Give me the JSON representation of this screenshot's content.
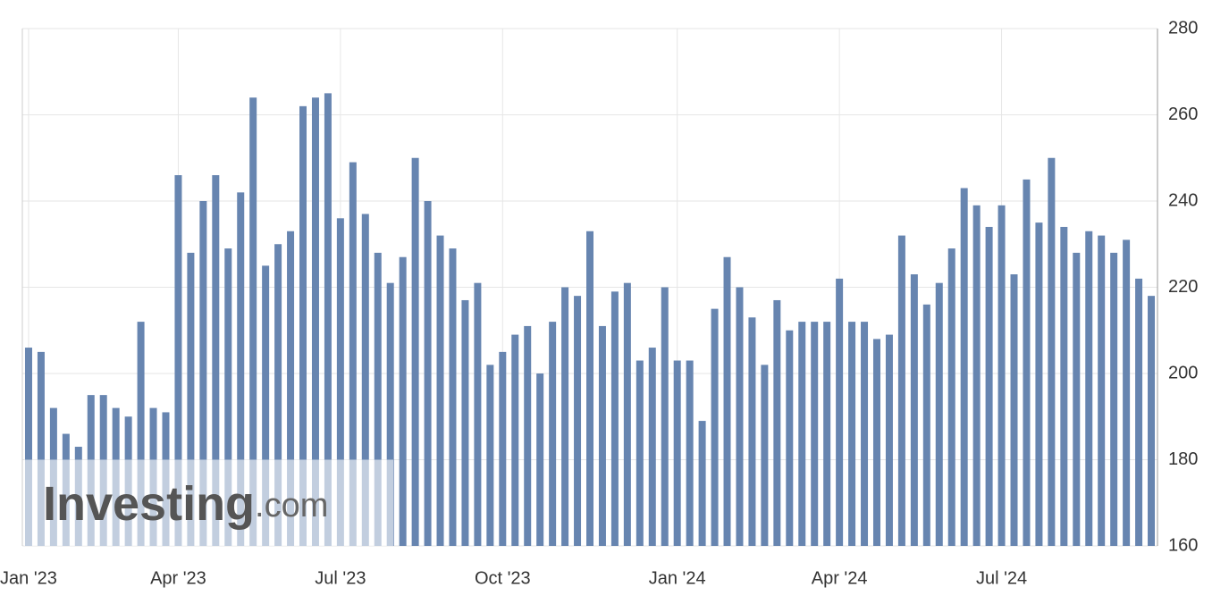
{
  "chart_data": {
    "type": "bar",
    "categories": [
      "Jan '23",
      null,
      null,
      null,
      null,
      null,
      null,
      null,
      null,
      null,
      null,
      null,
      "Apr '23",
      null,
      null,
      null,
      null,
      null,
      null,
      null,
      null,
      null,
      null,
      null,
      null,
      "Jul '23",
      null,
      null,
      null,
      null,
      null,
      null,
      null,
      null,
      null,
      null,
      null,
      null,
      "Oct '23",
      null,
      null,
      null,
      null,
      null,
      null,
      null,
      null,
      null,
      null,
      null,
      null,
      null,
      "Jan '24",
      null,
      null,
      null,
      null,
      null,
      null,
      null,
      null,
      null,
      null,
      null,
      null,
      "Apr '24",
      null,
      null,
      null,
      null,
      null,
      null,
      null,
      null,
      null,
      null,
      null,
      null,
      "Jul '24",
      null,
      null,
      null,
      null,
      null,
      null,
      null,
      null,
      null,
      null,
      null,
      null
    ],
    "values": [
      206,
      205,
      192,
      186,
      183,
      195,
      195,
      192,
      190,
      212,
      192,
      191,
      246,
      228,
      240,
      246,
      229,
      242,
      264,
      225,
      230,
      233,
      262,
      264,
      265,
      236,
      249,
      237,
      228,
      221,
      227,
      250,
      240,
      232,
      229,
      217,
      221,
      202,
      205,
      209,
      211,
      200,
      212,
      220,
      218,
      233,
      211,
      219,
      221,
      203,
      206,
      220,
      203,
      203,
      189,
      215,
      227,
      220,
      213,
      202,
      217,
      210,
      212,
      212,
      212,
      222,
      212,
      212,
      208,
      209,
      232,
      223,
      216,
      221,
      229,
      243,
      239,
      234,
      239,
      223,
      245,
      235,
      250,
      234,
      228,
      233,
      232,
      228,
      231,
      222,
      218
    ],
    "color": "#6785b0",
    "ylim": [
      160,
      280
    ],
    "yticks": [
      160,
      180,
      200,
      220,
      240,
      260,
      280
    ],
    "grid": true,
    "watermark": {
      "brand": "Investing",
      "suffix": ".com"
    }
  }
}
